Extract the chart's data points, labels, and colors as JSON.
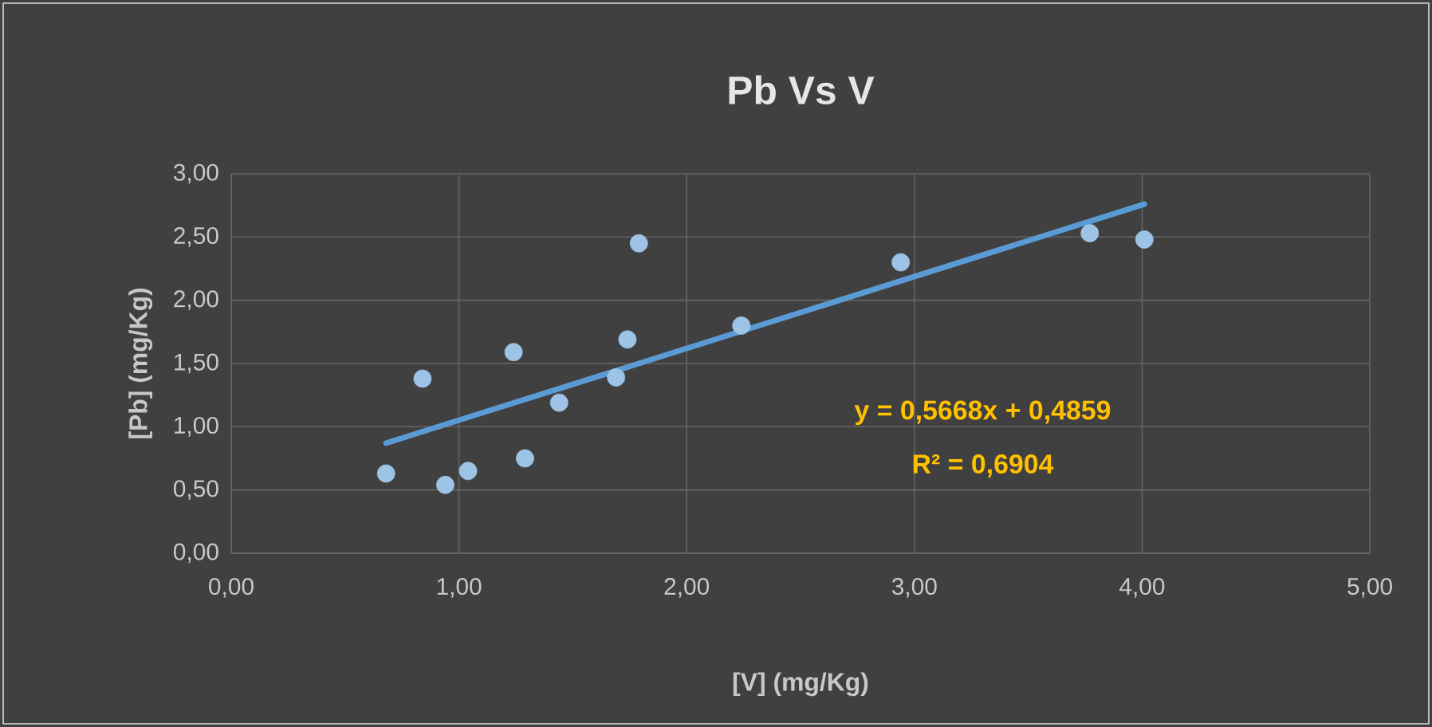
{
  "chart_data": {
    "type": "scatter",
    "title": "Pb Vs V",
    "xlabel": "[V] (mg/Kg)",
    "ylabel": "[Pb]  (mg/Kg)",
    "series": [
      {
        "color": "#9dc3e6",
        "x": [
          0.68,
          0.84,
          0.94,
          1.04,
          1.24,
          1.29,
          1.44,
          1.69,
          1.74,
          1.79,
          2.24,
          2.94,
          3.77,
          4.01
        ],
        "values": [
          0.63,
          1.38,
          0.54,
          0.65,
          1.59,
          0.75,
          1.19,
          1.39,
          1.69,
          2.45,
          1.8,
          2.3,
          2.53,
          2.48
        ]
      },
      {
        "type": "line",
        "marker": "none",
        "color": "#5b9bd5",
        "line_style": "solid",
        "x": [
          0.68,
          4.01
        ],
        "values": [
          0.87,
          2.76
        ]
      }
    ],
    "annotations": [
      "y = 0,5668x + 0,4859",
      "R² = 0,6904"
    ],
    "xlim": [
      0,
      5
    ],
    "ylim": [
      0,
      3
    ],
    "xticks": [
      {
        "value": 0,
        "label": "0,00"
      },
      {
        "value": 1,
        "label": "1,00"
      },
      {
        "value": 2,
        "label": "2,00"
      },
      {
        "value": 3,
        "label": "3,00"
      },
      {
        "value": 4,
        "label": "4,00"
      },
      {
        "value": 5,
        "label": "5,00"
      }
    ],
    "yticks": [
      {
        "value": 0,
        "label": "0,00"
      },
      {
        "value": 0.5,
        "label": "0,50"
      },
      {
        "value": 1,
        "label": "1,00"
      },
      {
        "value": 1.5,
        "label": "1,50"
      },
      {
        "value": 2,
        "label": "2,00"
      },
      {
        "value": 2.5,
        "label": "2,50"
      },
      {
        "value": 3,
        "label": "3,00"
      }
    ],
    "grid": true
  }
}
